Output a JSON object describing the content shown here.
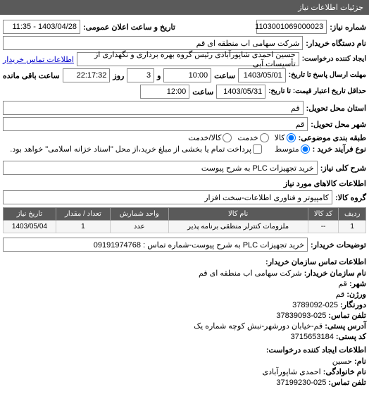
{
  "header": "جزئیات اطلاعات نیاز",
  "request_number": {
    "label": "شماره نیاز:",
    "value": "1103001069000023"
  },
  "announce": {
    "label": "تاریخ و ساعت اعلان عمومی:",
    "value": "1403/04/28 - 11:35"
  },
  "buyer_org": {
    "label": "نام دستگاه خریدار:",
    "value": "شرکت سهامی اب منطقه ای قم"
  },
  "requester": {
    "label": "ایجاد کننده درخواست:",
    "value": "حسین احمدی شاپورآبادی رئیس گروه بهره برداری و نگهداری از تأسیسات آبی"
  },
  "contact_link": "اطلاعات تماس خریدار",
  "deadline_send": {
    "label": "مهلت ارسال پاسخ تا تاریخ:",
    "date": "1403/05/01",
    "time_label": "ساعت",
    "time": "10:00",
    "and_label": "و",
    "days": "3",
    "days_label": "روز",
    "remain": "22:17:32",
    "remain_label": "ساعت باقی مانده"
  },
  "price_valid": {
    "label": "حداقل تاریخ اعتبار قیمت: تا تاریخ:",
    "date": "1403/05/31",
    "time_label": "ساعت",
    "time": "12:00"
  },
  "delivery_province": {
    "label": "استان محل تحویل:",
    "value": "قم"
  },
  "delivery_city": {
    "label": "شهر محل تحویل:",
    "value": "قم"
  },
  "subject_cat": {
    "label": "طبقه بندی موضوعی:",
    "options": [
      {
        "label": "کالا",
        "checked": true
      },
      {
        "label": "خدمت",
        "checked": false
      },
      {
        "label": "کالا/خدمت",
        "checked": false
      }
    ]
  },
  "purchase_process": {
    "label": "نوع فرآیند خرید :",
    "options": [
      {
        "label": "متوسط",
        "checked": true
      }
    ],
    "checkbox": {
      "label": "پرداخت تمام یا بخشی از مبلغ خرید،از محل \"اسناد خزانه اسلامی\" خواهد بود.",
      "checked": false
    }
  },
  "desc": {
    "label": "شرح کلی نیاز:",
    "value": "خرید تجهیزات PLC به شرح پیوست"
  },
  "goods_section": "اطلاعات کالاهای مورد نیاز",
  "goods_group": {
    "label": "گروه کالا:",
    "value": "کامپیوتر و فناوری اطلاعات-سخت افزار"
  },
  "table": {
    "headers": [
      "ردیف",
      "کد کالا",
      "نام کالا",
      "واحد شمارش",
      "تعداد / مقدار",
      "تاریخ نیاز"
    ],
    "rows": [
      [
        "1",
        "--",
        "ملزومات کنترلر منطقی برنامه پذیر",
        "عدد",
        "1",
        "1403/05/04"
      ]
    ]
  },
  "buyer_note": {
    "label": "توضیحات خریدار:",
    "value": "خرید تجهیزات PLC به شرح پیوست-شماره تماس : 09191974768"
  },
  "contact_section": {
    "title": "اطلاعات تماس سازمان خریدار:",
    "rows": [
      {
        "label": "نام سازمان خریدار:",
        "value": "شرکت سهامی اب منطقه ای قم"
      },
      {
        "label": "شهر:",
        "value": "قم"
      },
      {
        "label": "ورژن:",
        "value": "قم"
      },
      {
        "label": "دورنگار:",
        "value": "025-3789092"
      },
      {
        "label": "تلفن تماس:",
        "value": "025-37839093"
      },
      {
        "label": "آدرس پستی:",
        "value": "قم-خیابان دورشهر-نبش کوچه شماره یک"
      },
      {
        "label": "کد پستی:",
        "value": "3715653184"
      }
    ],
    "requester_title": "اطلاعات ایجاد کننده درخواست:",
    "requester_rows": [
      {
        "label": "نام:",
        "value": "حسین"
      },
      {
        "label": "نام خانوادگی:",
        "value": "احمدی شاپورآبادی"
      },
      {
        "label": "تلفن تماس:",
        "value": "025-37199230"
      }
    ]
  }
}
